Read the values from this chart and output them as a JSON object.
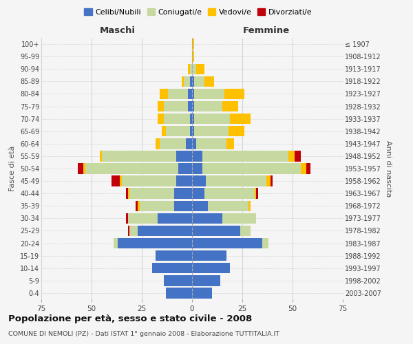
{
  "age_groups": [
    "0-4",
    "5-9",
    "10-14",
    "15-19",
    "20-24",
    "25-29",
    "30-34",
    "35-39",
    "40-44",
    "45-49",
    "50-54",
    "55-59",
    "60-64",
    "65-69",
    "70-74",
    "75-79",
    "80-84",
    "85-89",
    "90-94",
    "95-99",
    "100+"
  ],
  "birth_years": [
    "2003-2007",
    "1998-2002",
    "1993-1997",
    "1988-1992",
    "1983-1987",
    "1978-1982",
    "1973-1977",
    "1968-1972",
    "1963-1967",
    "1958-1962",
    "1953-1957",
    "1948-1952",
    "1943-1947",
    "1938-1942",
    "1933-1937",
    "1928-1932",
    "1923-1927",
    "1918-1922",
    "1913-1917",
    "1908-1912",
    "≤ 1907"
  ],
  "maschi_celibi": [
    13,
    14,
    20,
    18,
    37,
    27,
    17,
    9,
    9,
    8,
    7,
    8,
    3,
    1,
    1,
    2,
    2,
    1,
    0,
    0,
    0
  ],
  "maschi_coniugati": [
    0,
    0,
    0,
    0,
    2,
    4,
    15,
    17,
    22,
    27,
    46,
    37,
    13,
    12,
    13,
    12,
    10,
    3,
    1,
    0,
    0
  ],
  "maschi_vedovi": [
    0,
    0,
    0,
    0,
    0,
    0,
    0,
    1,
    1,
    1,
    1,
    1,
    2,
    2,
    3,
    3,
    4,
    1,
    1,
    0,
    0
  ],
  "maschi_divorziati": [
    0,
    0,
    0,
    0,
    0,
    1,
    1,
    1,
    1,
    4,
    3,
    0,
    0,
    0,
    0,
    0,
    0,
    0,
    0,
    0,
    0
  ],
  "femmine_celibi": [
    10,
    14,
    19,
    17,
    35,
    24,
    15,
    8,
    6,
    7,
    5,
    5,
    2,
    1,
    1,
    1,
    1,
    1,
    0,
    0,
    0
  ],
  "femmine_coniugati": [
    0,
    0,
    0,
    0,
    3,
    5,
    17,
    20,
    25,
    30,
    49,
    43,
    15,
    17,
    18,
    14,
    15,
    5,
    2,
    0,
    0
  ],
  "femmine_vedovi": [
    0,
    0,
    0,
    0,
    0,
    0,
    0,
    1,
    1,
    2,
    3,
    3,
    4,
    8,
    10,
    8,
    10,
    5,
    4,
    1,
    1
  ],
  "femmine_divorziati": [
    0,
    0,
    0,
    0,
    0,
    0,
    0,
    0,
    1,
    1,
    2,
    3,
    0,
    0,
    0,
    0,
    0,
    0,
    0,
    0,
    0
  ],
  "colors": {
    "celibi": "#4472c4",
    "coniugati": "#c5d9a0",
    "vedovi": "#ffc000",
    "divorziati": "#c0000b"
  },
  "title": "Popolazione per età, sesso e stato civile - 2008",
  "subtitle": "COMUNE DI NEMOLI (PZ) - Dati ISTAT 1° gennaio 2008 - Elaborazione TUTTITALIA.IT",
  "xlabel_left": "Maschi",
  "xlabel_right": "Femmine",
  "ylabel_left": "Fasce di età",
  "ylabel_right": "Anni di nascita",
  "xlim": 75,
  "background_color": "#f5f5f5",
  "grid_color": "#cccccc",
  "legend_labels": [
    "Celibi/Nubili",
    "Coniugati/e",
    "Vedovi/e",
    "Divorziati/e"
  ]
}
